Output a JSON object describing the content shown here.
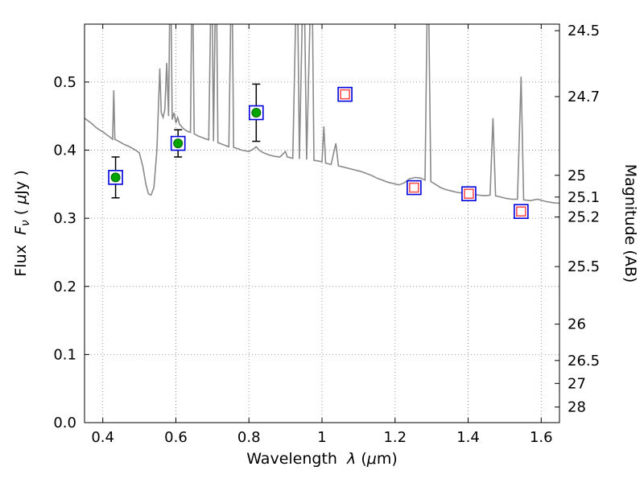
{
  "chart_data": {
    "type": "line",
    "title": "",
    "xlabel_parts": [
      {
        "t": "Wavelength  "
      },
      {
        "t": "λ",
        "i": 1
      },
      {
        "t": " (",
        "i": 0
      },
      {
        "t": "μ",
        "i": 1
      },
      {
        "t": "m)"
      }
    ],
    "ylabel_left_parts": [
      {
        "t": "Flux  "
      },
      {
        "t": "F",
        "i": 1
      },
      {
        "t": "ν",
        "i": 1,
        "sub": 1
      },
      {
        "t": " ( "
      },
      {
        "t": "μ",
        "i": 1
      },
      {
        "t": "Jy )"
      }
    ],
    "ylabel_right": "Magnitude (AB)",
    "xlim": [
      0.35,
      1.65
    ],
    "ylim_flux": [
      0.0,
      0.585
    ],
    "grid": true,
    "mag_zeropoint_ab": 23.9,
    "x_ticks": [
      {
        "v": 0.4,
        "label": "0.4"
      },
      {
        "v": 0.6,
        "label": "0.6"
      },
      {
        "v": 0.8,
        "label": "0.8"
      },
      {
        "v": 1.0,
        "label": "1"
      },
      {
        "v": 1.2,
        "label": "1.2"
      },
      {
        "v": 1.4,
        "label": "1.4"
      },
      {
        "v": 1.6,
        "label": "1.6"
      }
    ],
    "y_ticks_flux": [
      {
        "v": 0.0,
        "label": "0.0"
      },
      {
        "v": 0.1,
        "label": "0.1"
      },
      {
        "v": 0.2,
        "label": "0.2"
      },
      {
        "v": 0.3,
        "label": "0.3"
      },
      {
        "v": 0.4,
        "label": "0.4"
      },
      {
        "v": 0.5,
        "label": "0.5"
      }
    ],
    "y_ticks_mag": [
      {
        "v": 24.5,
        "label": "24.5"
      },
      {
        "v": 24.7,
        "label": "24.7"
      },
      {
        "v": 25.0,
        "label": "25"
      },
      {
        "v": 25.1,
        "label": "25.1"
      },
      {
        "v": 25.2,
        "label": "25.2"
      },
      {
        "v": 25.5,
        "label": "25.5"
      },
      {
        "v": 26.0,
        "label": "26"
      },
      {
        "v": 26.5,
        "label": "26.5"
      },
      {
        "v": 27.0,
        "label": "27"
      },
      {
        "v": 28.0,
        "label": "28"
      }
    ],
    "colors": {
      "spectrum": "#8a8a8a",
      "grid": "#999999",
      "axis": "#000000",
      "marker_square": "#0000dd",
      "marker_circle_fill": "#00a400",
      "marker_circle_edge": "#006600",
      "marker_inner_square": "#ff5050",
      "error_bar": "#000000",
      "background": "#ffffff"
    },
    "series": {
      "model_spectrum": {
        "name": "model-spectrum",
        "style": "gray solid line, emission spikes clipped at top",
        "points": [
          [
            0.35,
            0.447
          ],
          [
            0.36,
            0.443
          ],
          [
            0.37,
            0.439
          ],
          [
            0.38,
            0.434
          ],
          [
            0.39,
            0.43
          ],
          [
            0.4,
            0.427
          ],
          [
            0.41,
            0.423
          ],
          [
            0.42,
            0.419
          ],
          [
            0.427,
            0.416
          ],
          [
            0.43,
            0.488
          ],
          [
            0.433,
            0.416
          ],
          [
            0.44,
            0.414
          ],
          [
            0.45,
            0.411
          ],
          [
            0.46,
            0.408
          ],
          [
            0.47,
            0.406
          ],
          [
            0.48,
            0.403
          ],
          [
            0.49,
            0.4
          ],
          [
            0.5,
            0.396
          ],
          [
            0.51,
            0.375
          ],
          [
            0.518,
            0.35
          ],
          [
            0.525,
            0.336
          ],
          [
            0.532,
            0.334
          ],
          [
            0.54,
            0.345
          ],
          [
            0.548,
            0.4
          ],
          [
            0.552,
            0.46
          ],
          [
            0.556,
            0.52
          ],
          [
            0.56,
            0.455
          ],
          [
            0.565,
            0.448
          ],
          [
            0.57,
            0.46
          ],
          [
            0.575,
            0.528
          ],
          [
            0.58,
            0.45
          ],
          [
            0.585,
            0.7
          ],
          [
            0.59,
            0.445
          ],
          [
            0.595,
            0.455
          ],
          [
            0.6,
            0.44
          ],
          [
            0.605,
            0.448
          ],
          [
            0.61,
            0.438
          ],
          [
            0.615,
            0.435
          ],
          [
            0.62,
            0.432
          ],
          [
            0.63,
            0.428
          ],
          [
            0.64,
            0.426
          ],
          [
            0.645,
            0.7
          ],
          [
            0.65,
            0.424
          ],
          [
            0.66,
            0.421
          ],
          [
            0.67,
            0.419
          ],
          [
            0.68,
            0.417
          ],
          [
            0.69,
            0.415
          ],
          [
            0.698,
            0.7
          ],
          [
            0.703,
            0.413
          ],
          [
            0.71,
            0.7
          ],
          [
            0.715,
            0.411
          ],
          [
            0.725,
            0.409
          ],
          [
            0.735,
            0.407
          ],
          [
            0.745,
            0.405
          ],
          [
            0.753,
            0.7
          ],
          [
            0.758,
            0.404
          ],
          [
            0.77,
            0.402
          ],
          [
            0.78,
            0.4
          ],
          [
            0.79,
            0.399
          ],
          [
            0.8,
            0.398
          ],
          [
            0.81,
            0.401
          ],
          [
            0.82,
            0.405
          ],
          [
            0.828,
            0.4
          ],
          [
            0.84,
            0.396
          ],
          [
            0.855,
            0.393
          ],
          [
            0.87,
            0.391
          ],
          [
            0.885,
            0.39
          ],
          [
            0.9,
            0.398
          ],
          [
            0.905,
            0.39
          ],
          [
            0.92,
            0.388
          ],
          [
            0.932,
            0.7
          ],
          [
            0.938,
            0.387
          ],
          [
            0.95,
            0.7
          ],
          [
            0.958,
            0.386
          ],
          [
            0.972,
            0.7
          ],
          [
            0.978,
            0.385
          ],
          [
            0.99,
            0.384
          ],
          [
            1.0,
            0.383
          ],
          [
            1.005,
            0.435
          ],
          [
            1.01,
            0.381
          ],
          [
            1.025,
            0.379
          ],
          [
            1.038,
            0.41
          ],
          [
            1.045,
            0.377
          ],
          [
            1.06,
            0.375
          ],
          [
            1.075,
            0.373
          ],
          [
            1.09,
            0.371
          ],
          [
            1.105,
            0.369
          ],
          [
            1.12,
            0.366
          ],
          [
            1.135,
            0.363
          ],
          [
            1.15,
            0.359
          ],
          [
            1.165,
            0.356
          ],
          [
            1.18,
            0.353
          ],
          [
            1.195,
            0.351
          ],
          [
            1.21,
            0.349
          ],
          [
            1.225,
            0.352
          ],
          [
            1.24,
            0.358
          ],
          [
            1.255,
            0.36
          ],
          [
            1.27,
            0.359
          ],
          [
            1.282,
            0.356
          ],
          [
            1.29,
            0.7
          ],
          [
            1.298,
            0.354
          ],
          [
            1.31,
            0.35
          ],
          [
            1.325,
            0.345
          ],
          [
            1.34,
            0.342
          ],
          [
            1.355,
            0.34
          ],
          [
            1.37,
            0.338
          ],
          [
            1.385,
            0.337
          ],
          [
            1.4,
            0.336
          ],
          [
            1.415,
            0.335
          ],
          [
            1.43,
            0.334
          ],
          [
            1.445,
            0.333
          ],
          [
            1.46,
            0.334
          ],
          [
            1.468,
            0.447
          ],
          [
            1.475,
            0.333
          ],
          [
            1.49,
            0.331
          ],
          [
            1.505,
            0.329
          ],
          [
            1.52,
            0.328
          ],
          [
            1.535,
            0.328
          ],
          [
            1.545,
            0.508
          ],
          [
            1.552,
            0.327
          ],
          [
            1.57,
            0.326
          ],
          [
            1.59,
            0.328
          ],
          [
            1.61,
            0.325
          ],
          [
            1.63,
            0.323
          ],
          [
            1.65,
            0.322
          ]
        ]
      },
      "observed_photometry": {
        "name": "observed-photometry",
        "marker": "green filled circle inside open blue square with black error bars",
        "points": [
          {
            "x": 0.435,
            "y": 0.36,
            "yerr": 0.03
          },
          {
            "x": 0.606,
            "y": 0.41,
            "yerr": 0.02
          },
          {
            "x": 0.82,
            "y": 0.455,
            "yerr": 0.042
          }
        ]
      },
      "synthetic_photometry": {
        "name": "synthetic-photometry",
        "marker": "open red square inside open blue square",
        "points": [
          {
            "x": 1.063,
            "y": 0.482
          },
          {
            "x": 1.252,
            "y": 0.345
          },
          {
            "x": 1.402,
            "y": 0.336
          },
          {
            "x": 1.545,
            "y": 0.31
          }
        ]
      }
    }
  }
}
